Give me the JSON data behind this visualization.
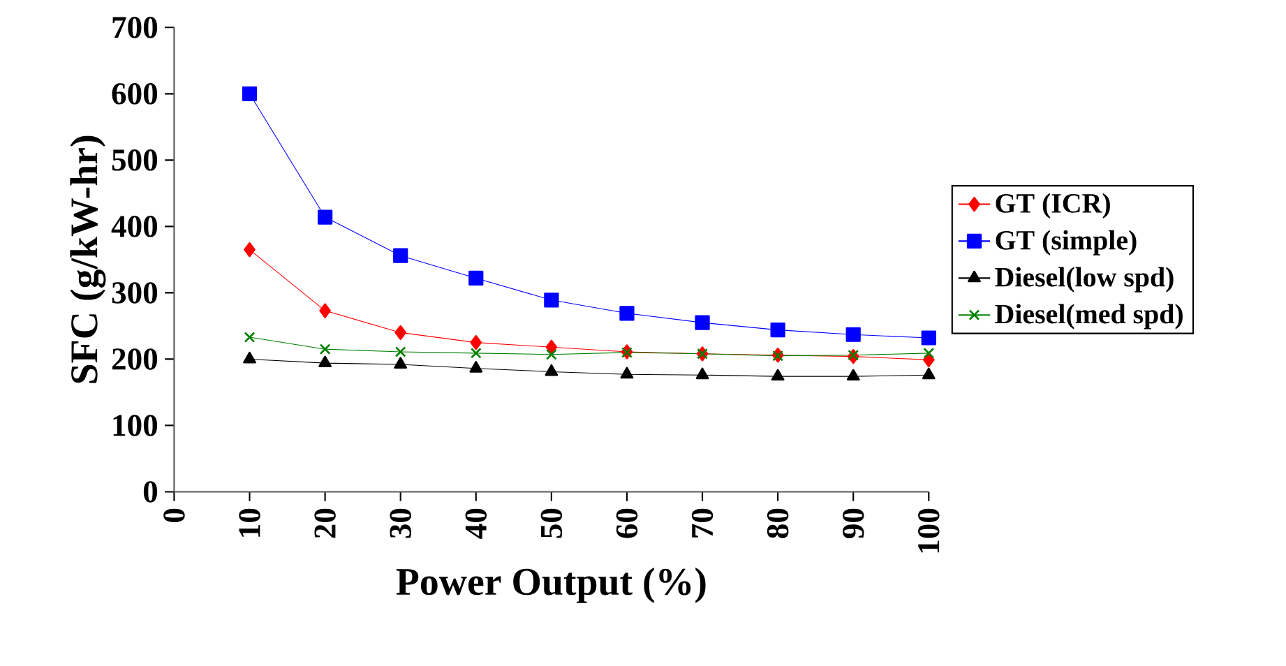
{
  "chart_data": {
    "type": "line",
    "xlabel": "Power Output (%)",
    "ylabel": "SFC (g/kW-hr)",
    "x": [
      10,
      20,
      30,
      40,
      50,
      60,
      70,
      80,
      90,
      100
    ],
    "xlim": [
      0,
      100
    ],
    "xticks": [
      0,
      10,
      20,
      30,
      40,
      50,
      60,
      70,
      80,
      90,
      100
    ],
    "ylim": [
      0,
      700
    ],
    "yticks": [
      0,
      100,
      200,
      300,
      400,
      500,
      600,
      700
    ],
    "grid": false,
    "legend": "right",
    "series": [
      {
        "name": "GT (ICR)",
        "color": "#ff0000",
        "marker": "diamond",
        "values": [
          365,
          273,
          240,
          225,
          218,
          211,
          208,
          206,
          204,
          199
        ]
      },
      {
        "name": "GT (simple)",
        "color": "#0000ff",
        "marker": "square",
        "values": [
          600,
          414,
          356,
          322,
          289,
          269,
          255,
          244,
          237,
          232
        ]
      },
      {
        "name": "Diesel(low spd)",
        "color": "#000000",
        "marker": "triangle",
        "values": [
          200,
          194,
          192,
          186,
          181,
          177,
          176,
          174,
          174,
          176
        ]
      },
      {
        "name": "Diesel(med spd)",
        "color": "#008000",
        "marker": "cross",
        "values": [
          233,
          215,
          211,
          209,
          207,
          210,
          208,
          205,
          206,
          209
        ]
      }
    ]
  }
}
